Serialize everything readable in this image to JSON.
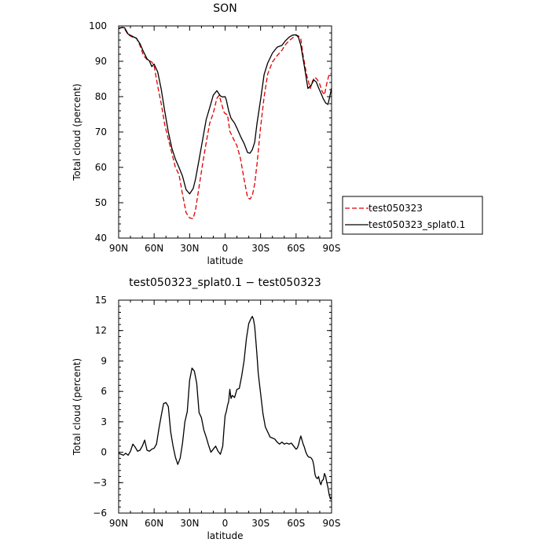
{
  "chart_data": [
    {
      "type": "line",
      "title": "SON",
      "xlabel": "latitude",
      "ylabel": "Total cloud (percent)",
      "xlim": [
        90,
        -90
      ],
      "ylim": [
        40,
        100
      ],
      "xticks": [
        90,
        60,
        30,
        0,
        -30,
        -60,
        -90
      ],
      "xtick_labels": [
        "90N",
        "60N",
        "30N",
        "0",
        "30S",
        "60S",
        "90S"
      ],
      "yticks": [
        40,
        50,
        60,
        70,
        80,
        90,
        100
      ],
      "ytick_labels": [
        "40",
        "50",
        "60",
        "70",
        "80",
        "90",
        "100"
      ],
      "legend_position": "right",
      "series": [
        {
          "name": "test050323",
          "color": "#e00000",
          "dash": "dashed",
          "x": [
            90,
            87,
            85,
            82,
            78,
            75,
            72,
            69,
            66,
            62,
            60,
            57,
            54,
            51,
            48,
            45,
            42,
            39,
            36,
            33,
            30,
            27,
            25,
            22,
            19,
            16,
            13,
            10,
            7,
            5,
            3,
            1,
            0,
            -2,
            -4,
            -7,
            -10,
            -13,
            -16,
            -19,
            -21,
            -23,
            -25,
            -27,
            -30,
            -33,
            -36,
            -40,
            -44,
            -48,
            -51,
            -54,
            -57,
            -60,
            -62,
            -64,
            -66,
            -69,
            -72,
            -74,
            -76,
            -78,
            -80,
            -82,
            -84,
            -86,
            -88,
            -90
          ],
          "y": [
            99.4,
            99.6,
            99.2,
            97.5,
            96.8,
            96.6,
            94.5,
            91.6,
            90.5,
            89.8,
            88.7,
            83,
            78,
            72,
            68,
            64,
            60,
            58,
            52.4,
            47.2,
            45.7,
            45.5,
            48,
            54.5,
            61,
            67,
            72.5,
            75.3,
            79.5,
            80.4,
            78,
            75.7,
            75.2,
            74.9,
            70.2,
            68.1,
            66.1,
            62.5,
            56.7,
            51.5,
            51,
            52,
            55.3,
            61,
            71.4,
            80,
            86.4,
            89.8,
            91.6,
            93.1,
            94.7,
            95.8,
            96.6,
            97.4,
            97.2,
            96.3,
            91.5,
            86.1,
            82.3,
            84.5,
            85.5,
            84.8,
            83.5,
            81.5,
            80.5,
            83.8,
            86.4,
            86.6
          ]
        },
        {
          "name": "test050323_splat0.1",
          "color": "#000000",
          "dash": "solid",
          "x": [
            90,
            87,
            85,
            82,
            78,
            75,
            72,
            69,
            66,
            64,
            62,
            60,
            57,
            54,
            51,
            48,
            45,
            42,
            39,
            36,
            33,
            30,
            27,
            25,
            22,
            19,
            16,
            13,
            10,
            7,
            4,
            2,
            0,
            -1,
            -3,
            -5,
            -8,
            -10,
            -13,
            -16,
            -19,
            -21,
            -23,
            -25,
            -27,
            -30,
            -33,
            -36,
            -40,
            -44,
            -48,
            -51,
            -54,
            -57,
            -60,
            -62,
            -64,
            -67,
            -70,
            -73,
            -75,
            -77,
            -79,
            -81,
            -83,
            -85,
            -87,
            -90
          ],
          "y": [
            99.2,
            99.6,
            99.5,
            97.7,
            97.0,
            96.5,
            95.0,
            92.7,
            90.7,
            90.1,
            88.5,
            89.2,
            87.0,
            82.1,
            75.8,
            70.0,
            65.4,
            62.3,
            60.0,
            57.5,
            53.7,
            52.5,
            54,
            56.7,
            62.2,
            67.8,
            73.5,
            76.9,
            80.4,
            81.7,
            80.2,
            79.9,
            80,
            79.1,
            76.0,
            73.9,
            72.5,
            71.1,
            68.8,
            66.8,
            64.2,
            64.0,
            65.0,
            67.1,
            72.5,
            79.2,
            86.3,
            89.5,
            92.3,
            94.0,
            94.5,
            95.8,
            96.8,
            97.4,
            97.5,
            96.8,
            94.5,
            88.6,
            82.3,
            83.4,
            84.7,
            84.2,
            82.5,
            81.0,
            79.4,
            78.2,
            77.8,
            82.4
          ]
        }
      ]
    },
    {
      "type": "line",
      "title": "test050323_splat0.1 − test050323",
      "xlabel": "latitude",
      "ylabel": "Total cloud (percent)",
      "xlim": [
        90,
        -90
      ],
      "ylim": [
        -6,
        15
      ],
      "xticks": [
        90,
        60,
        30,
        0,
        -30,
        -60,
        -90
      ],
      "xtick_labels": [
        "90N",
        "60N",
        "30N",
        "0",
        "30S",
        "60S",
        "90S"
      ],
      "yticks": [
        -6,
        -3,
        0,
        3,
        6,
        9,
        12,
        15
      ],
      "ytick_labels": [
        "−6",
        "−3",
        "0",
        "3",
        "6",
        "9",
        "12",
        "15"
      ],
      "series": [
        {
          "color": "#000000",
          "dash": "solid",
          "x": [
            90,
            88,
            86,
            84,
            82,
            80,
            78,
            76,
            74,
            72,
            70,
            68,
            66,
            64,
            62,
            60,
            58,
            56,
            54,
            52,
            50,
            48,
            46,
            44,
            42,
            40,
            38,
            36,
            34,
            32,
            30,
            28,
            26,
            24,
            22,
            20,
            18,
            16,
            14,
            12,
            10,
            8,
            6,
            4,
            2,
            1,
            0,
            -1,
            -2,
            -3,
            -4,
            -5,
            -6,
            -8,
            -10,
            -12,
            -14,
            -16,
            -18,
            -20,
            -22,
            -23,
            -24,
            -25,
            -26,
            -27,
            -28,
            -30,
            -32,
            -34,
            -36,
            -38,
            -40,
            -42,
            -44,
            -46,
            -48,
            -50,
            -52,
            -54,
            -56,
            -58,
            -60,
            -61,
            -62,
            -63,
            -64,
            -65,
            -66,
            -67,
            -68,
            -69,
            -70,
            -71,
            -72,
            -73,
            -74,
            -75,
            -76,
            -77,
            -78,
            -79,
            -80,
            -81,
            -82,
            -83,
            -84,
            -85,
            -86,
            -87,
            -88,
            -89,
            -90
          ],
          "y": [
            -0.1,
            -0.2,
            -0.3,
            -0.1,
            -0.3,
            0.1,
            0.8,
            0.5,
            0.1,
            0.2,
            0.6,
            1.2,
            0.2,
            0.1,
            0.3,
            0.4,
            0.8,
            2.3,
            3.6,
            4.8,
            4.9,
            4.5,
            2.0,
            0.6,
            -0.5,
            -1.2,
            -0.6,
            0.9,
            3.0,
            4.0,
            7.1,
            8.3,
            8.0,
            6.8,
            3.9,
            3.4,
            2.2,
            1.5,
            0.7,
            0.0,
            0.3,
            0.6,
            0.1,
            -0.2,
            0.6,
            2.2,
            3.6,
            4.0,
            4.6,
            5.0,
            6.2,
            5.3,
            5.6,
            5.4,
            6.2,
            6.3,
            7.5,
            9.0,
            11.2,
            12.7,
            13.2,
            13.4,
            13.1,
            12.4,
            11.0,
            9.5,
            7.8,
            5.8,
            3.8,
            2.5,
            2.0,
            1.5,
            1.4,
            1.3,
            1.0,
            0.8,
            1.0,
            0.8,
            0.9,
            0.8,
            0.9,
            0.6,
            0.3,
            0.4,
            0.7,
            1.2,
            1.6,
            1.2,
            0.8,
            0.5,
            0.1,
            -0.2,
            -0.4,
            -0.5,
            -0.5,
            -0.6,
            -0.8,
            -1.3,
            -2.2,
            -2.5,
            -2.6,
            -2.4,
            -2.9,
            -3.2,
            -2.8,
            -2.7,
            -2.1,
            -2.4,
            -3.0,
            -3.5,
            -4.2,
            -4.6,
            -4.4
          ]
        }
      ]
    }
  ]
}
